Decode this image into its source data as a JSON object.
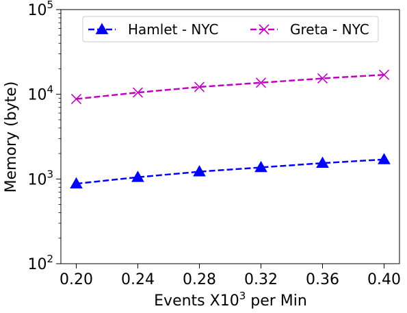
{
  "chart_data": {
    "type": "line",
    "title": "",
    "xlabel": "Events X10",
    "xlabel_sup": "3",
    "xlabel_suffix": " per Min",
    "ylabel": "Memory (byte)",
    "x": [
      0.2,
      0.24,
      0.28,
      0.32,
      0.36,
      0.4
    ],
    "x_tick_labels": [
      "0.20",
      "0.24",
      "0.28",
      "0.32",
      "0.36",
      "0.40"
    ],
    "xlim": [
      0.19,
      0.41
    ],
    "yscale": "log",
    "ylim": [
      100,
      100000
    ],
    "y_ticks": [
      {
        "value": 100,
        "base": "10",
        "exp": "2"
      },
      {
        "value": 1000,
        "base": "10",
        "exp": "3"
      },
      {
        "value": 10000,
        "base": "10",
        "exp": "4"
      },
      {
        "value": 100000,
        "base": "10",
        "exp": "5"
      }
    ],
    "grid": false,
    "legend_position": "top-center",
    "series": [
      {
        "name": "Hamlet - NYC",
        "values": [
          880,
          1050,
          1220,
          1370,
          1540,
          1700
        ],
        "color": "#0000ff",
        "marker": "triangle",
        "linestyle": "dashed"
      },
      {
        "name": "Greta - NYC",
        "values": [
          8800,
          10500,
          12200,
          13700,
          15400,
          17000
        ],
        "color": "#bf00bf",
        "marker": "x",
        "linestyle": "dashed"
      }
    ]
  }
}
